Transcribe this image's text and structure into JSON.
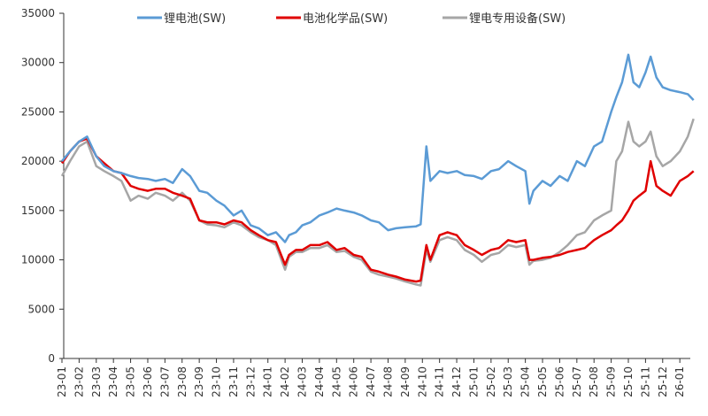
{
  "chart_data": {
    "type": "line",
    "title": "",
    "xlabel": "",
    "ylabel": "",
    "ylim": [
      0,
      35000
    ],
    "yticks": [
      0,
      5000,
      10000,
      15000,
      20000,
      25000,
      30000,
      35000
    ],
    "xticks": [
      "23-01",
      "23-02",
      "23-03",
      "23-04",
      "23-05",
      "23-06",
      "23-07",
      "23-08",
      "23-09",
      "23-10",
      "23-11",
      "23-12",
      "24-01",
      "24-02",
      "24-03",
      "24-04",
      "24-05",
      "24-06",
      "24-07",
      "24-08",
      "24-09",
      "24-10",
      "24-11",
      "24-12",
      "25-01",
      "25-02",
      "25-03",
      "25-04",
      "25-05",
      "25-06",
      "25-07",
      "25-08",
      "25-09",
      "25-10",
      "25-11",
      "25-12",
      "26-01"
    ],
    "grid": false,
    "legend": "top",
    "x": [
      "2023-01-01",
      "2023-01-15",
      "2023-02-01",
      "2023-02-15",
      "2023-03-01",
      "2023-03-15",
      "2023-04-01",
      "2023-04-15",
      "2023-05-01",
      "2023-05-15",
      "2023-06-01",
      "2023-06-15",
      "2023-07-01",
      "2023-07-15",
      "2023-08-01",
      "2023-08-15",
      "2023-09-01",
      "2023-09-15",
      "2023-10-01",
      "2023-10-15",
      "2023-11-01",
      "2023-11-15",
      "2023-12-01",
      "2023-12-15",
      "2024-01-01",
      "2024-01-15",
      "2024-02-01",
      "2024-02-08",
      "2024-02-20",
      "2024-03-01",
      "2024-03-15",
      "2024-04-01",
      "2024-04-15",
      "2024-05-01",
      "2024-05-15",
      "2024-06-01",
      "2024-06-15",
      "2024-07-01",
      "2024-07-15",
      "2024-08-01",
      "2024-08-15",
      "2024-09-01",
      "2024-09-20",
      "2024-09-28",
      "2024-10-08",
      "2024-10-15",
      "2024-11-01",
      "2024-11-15",
      "2024-12-01",
      "2024-12-15",
      "2025-01-01",
      "2025-01-15",
      "2025-02-01",
      "2025-02-15",
      "2025-03-01",
      "2025-03-15",
      "2025-04-01",
      "2025-04-08",
      "2025-04-15",
      "2025-05-01",
      "2025-05-15",
      "2025-06-01",
      "2025-06-15",
      "2025-07-01",
      "2025-07-15",
      "2025-08-01",
      "2025-08-15",
      "2025-09-01",
      "2025-09-10",
      "2025-09-20",
      "2025-10-01",
      "2025-10-10",
      "2025-10-20",
      "2025-11-01",
      "2025-11-10",
      "2025-11-20",
      "2025-12-01",
      "2025-12-15",
      "2026-01-01",
      "2026-01-15",
      "2026-01-25"
    ],
    "series": [
      {
        "name": "锂电池(SW)",
        "color": "#5b9bd5",
        "values": [
          20000,
          21000,
          22000,
          22500,
          20500,
          19500,
          19000,
          18800,
          18500,
          18300,
          18200,
          18000,
          18200,
          17800,
          19200,
          18500,
          17000,
          16800,
          16000,
          15500,
          14500,
          15000,
          13500,
          13200,
          12500,
          12800,
          11800,
          12500,
          12800,
          13500,
          13800,
          14500,
          14800,
          15200,
          15000,
          14800,
          14500,
          14000,
          13800,
          13000,
          13200,
          13300,
          13400,
          13600,
          21500,
          18000,
          19000,
          18800,
          19000,
          18600,
          18500,
          18200,
          19000,
          19200,
          20000,
          19500,
          19000,
          15700,
          17000,
          18000,
          17500,
          18500,
          18000,
          20000,
          19500,
          21500,
          22000,
          25000,
          26500,
          28000,
          30800,
          28000,
          27500,
          29000,
          30600,
          28500,
          27500,
          27200,
          27000,
          26800,
          26200
        ]
      },
      {
        "name": "电池化学品(SW)",
        "color": "#e00000",
        "values": [
          19800,
          21000,
          22000,
          22300,
          20500,
          19800,
          19000,
          18800,
          17500,
          17200,
          17000,
          17200,
          17200,
          16800,
          16500,
          16200,
          14000,
          13800,
          13800,
          13600,
          14000,
          13800,
          13000,
          12500,
          12000,
          11800,
          9500,
          10500,
          11000,
          11000,
          11500,
          11500,
          11800,
          11000,
          11200,
          10500,
          10300,
          9000,
          8800,
          8500,
          8300,
          8000,
          7800,
          7900,
          11500,
          10000,
          12500,
          12800,
          12500,
          11500,
          11000,
          10500,
          11000,
          11200,
          12000,
          11800,
          12000,
          10000,
          10000,
          10200,
          10300,
          10500,
          10800,
          11000,
          11200,
          12000,
          12500,
          13000,
          13500,
          14000,
          15000,
          16000,
          16500,
          17000,
          20000,
          17500,
          17000,
          16500,
          18000,
          18500,
          19000
        ]
      },
      {
        "name": "锂电专用设备(SW)",
        "color": "#a6a6a6",
        "values": [
          18500,
          20000,
          21500,
          22000,
          19500,
          19000,
          18500,
          18000,
          16000,
          16500,
          16200,
          16800,
          16500,
          16000,
          16800,
          16000,
          14000,
          13600,
          13500,
          13300,
          13800,
          13500,
          12800,
          12300,
          12000,
          11500,
          9000,
          10300,
          10800,
          10800,
          11200,
          11200,
          11500,
          10800,
          10900,
          10300,
          10000,
          8800,
          8500,
          8300,
          8100,
          7800,
          7500,
          7400,
          11000,
          9800,
          12000,
          12300,
          12000,
          11000,
          10500,
          9800,
          10500,
          10700,
          11500,
          11300,
          11500,
          9500,
          9900,
          10000,
          10200,
          10800,
          11500,
          12500,
          12800,
          14000,
          14500,
          15000,
          20000,
          21000,
          24000,
          22000,
          21500,
          22000,
          23000,
          20500,
          19500,
          20000,
          21000,
          22500,
          24300
        ]
      }
    ]
  }
}
